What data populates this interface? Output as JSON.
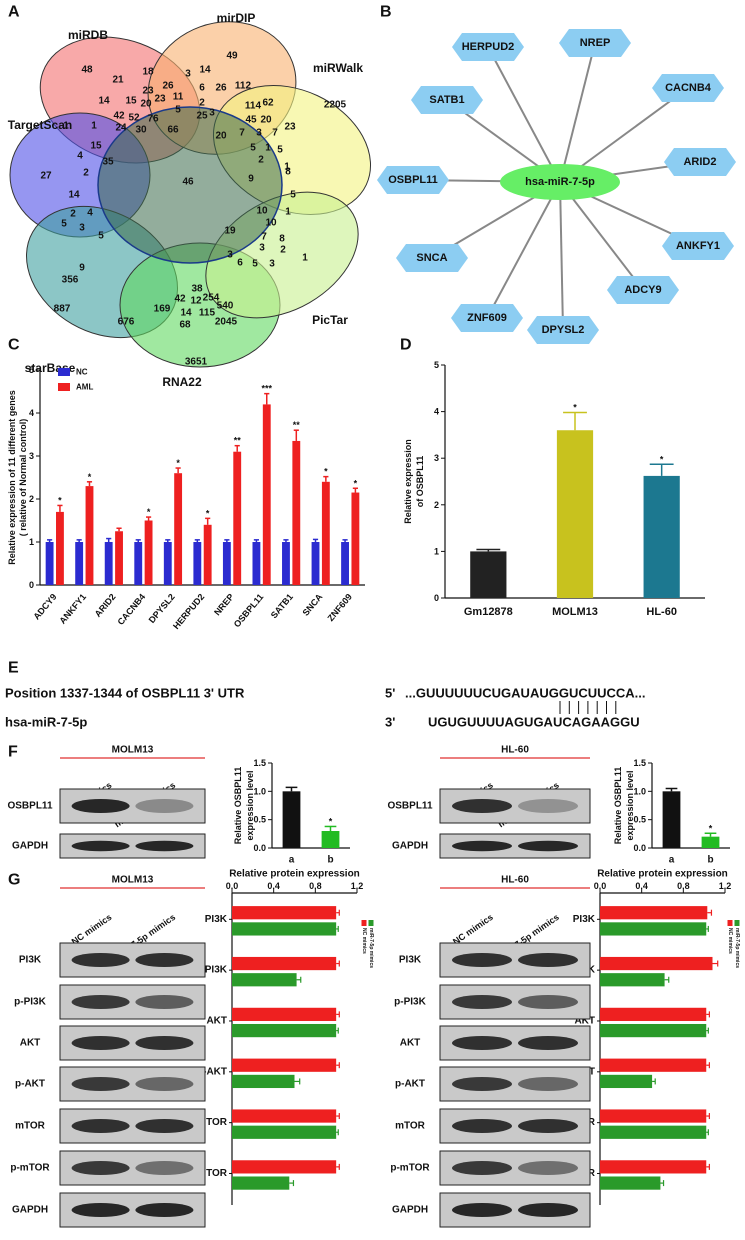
{
  "panel_labels": [
    "A",
    "B",
    "C",
    "D",
    "E",
    "F",
    "G"
  ],
  "venn": {
    "sets": [
      "miRDB",
      "mirDIP",
      "miRWalk",
      "TargetScan",
      "starBase",
      "RNA22",
      "PicTar"
    ],
    "counts": [
      48,
      21,
      18,
      3,
      14,
      49,
      23,
      26,
      6,
      26,
      112,
      14,
      15,
      20,
      23,
      11,
      2,
      62,
      42,
      52,
      76,
      5,
      3,
      114,
      1,
      24,
      30,
      66,
      25,
      45,
      20,
      1,
      23,
      2205,
      15,
      20,
      7,
      3,
      7,
      5,
      1,
      4,
      35,
      5,
      1,
      27,
      2,
      46,
      9,
      2,
      8,
      5,
      14,
      5,
      2,
      4,
      3,
      5,
      10,
      1,
      10,
      7,
      8,
      9,
      3,
      2,
      19,
      1,
      356,
      3,
      6,
      5,
      3,
      887,
      38,
      42,
      12,
      254,
      540,
      169,
      14,
      115,
      676,
      2045,
      68,
      3651
    ]
  },
  "network": {
    "center": "hsa-miR-7-5p",
    "targets": [
      "HERPUD2",
      "NREP",
      "CACNB4",
      "SATB1",
      "ARID2",
      "OSBPL11",
      "ANKFY1",
      "SNCA",
      "ADCY9",
      "ZNF609",
      "DPYSL2"
    ]
  },
  "chart_data": [
    {
      "type": "bar",
      "ylabel": [
        "Relative expression of 11 different genes",
        "( relative of Normal control)"
      ],
      "categories": [
        "ADCY9",
        "ANKFY1",
        "ARID2",
        "CACNB4",
        "DPYSL2",
        "HERPUD2",
        "NREP",
        "OSBPL11",
        "SATB1",
        "SNCA",
        "ZNF609"
      ],
      "series": [
        {
          "name": "NC",
          "color": "#2b2bd0",
          "values": [
            1,
            1,
            1,
            1,
            1,
            1,
            1,
            1,
            1,
            1,
            1
          ],
          "errors": [
            0.05,
            0.05,
            0.08,
            0.05,
            0.05,
            0.05,
            0.05,
            0.05,
            0.05,
            0.06,
            0.05
          ]
        },
        {
          "name": "AML",
          "color": "#ee2020",
          "values": [
            1.7,
            2.3,
            1.25,
            1.5,
            2.6,
            1.4,
            3.1,
            4.2,
            3.35,
            2.4,
            2.15
          ],
          "errors": [
            0.15,
            0.1,
            0.07,
            0.08,
            0.12,
            0.15,
            0.14,
            0.25,
            0.25,
            0.12,
            0.1
          ],
          "annotations": [
            "*",
            "*",
            null,
            "*",
            "*",
            "*",
            "**",
            "***",
            "**",
            "*",
            "*"
          ]
        }
      ],
      "ylim": [
        0,
        5
      ],
      "yticks": [
        0,
        1,
        2,
        3,
        4,
        5
      ],
      "legend": "upper left"
    },
    {
      "type": "bar",
      "ylabel": [
        "Relative expression",
        "of OSBPL11"
      ],
      "categories": [
        "Gm12878",
        "MOLM13",
        "HL-60"
      ],
      "values": [
        1.0,
        3.6,
        2.62
      ],
      "errors": [
        0.04,
        0.38,
        0.25
      ],
      "colors": [
        "#222222",
        "#c8c21e",
        "#1c7890"
      ],
      "annotations": [
        null,
        "*",
        "*"
      ],
      "ylim": [
        0,
        5
      ],
      "yticks": [
        0,
        1,
        2,
        3,
        4,
        5
      ]
    },
    {
      "type": "bar",
      "ylabel": [
        "Relative OSBPL11",
        "expression level"
      ],
      "categories": [
        "a",
        "b"
      ],
      "values": [
        1.0,
        0.3
      ],
      "errors": [
        0.07,
        0.08
      ],
      "colors": [
        "#111111",
        "#22bb22"
      ],
      "annotations": [
        null,
        "*"
      ],
      "ylim": [
        0,
        1.5
      ],
      "yticks": [
        {
          "value": 0,
          "label": "0.0"
        },
        {
          "value": 0.5,
          "label": "0.5"
        },
        {
          "value": 1,
          "label": "1.0"
        },
        {
          "value": 1.5,
          "label": "1.5"
        }
      ]
    },
    {
      "type": "bar",
      "ylabel": [
        "Relative OSBPL11",
        "expression level"
      ],
      "categories": [
        "a",
        "b"
      ],
      "values": [
        1.0,
        0.2
      ],
      "errors": [
        0.05,
        0.06
      ],
      "colors": [
        "#111111",
        "#22bb22"
      ],
      "annotations": [
        null,
        "*"
      ],
      "ylim": [
        0,
        1.5
      ],
      "yticks": [
        {
          "value": 0,
          "label": "0.0"
        },
        {
          "value": 0.5,
          "label": "0.5"
        },
        {
          "value": 1,
          "label": "1.0"
        },
        {
          "value": 1.5,
          "label": "1.5"
        }
      ]
    },
    {
      "type": "hbar",
      "title": "Relative protein expression",
      "categories": [
        "PI3K",
        "p-PI3K",
        "AKT",
        "p-AKT",
        "mTOR",
        "p-mTOR"
      ],
      "series": [
        {
          "name": "NC mimics",
          "color": "#ee2020",
          "values": [
            1.0,
            1.0,
            1.0,
            1.0,
            1.0,
            1.0
          ],
          "errors": [
            0.03,
            0.03,
            0.03,
            0.03,
            0.03,
            0.03
          ]
        },
        {
          "name": "miR-7-5p mimics",
          "color": "#2a9a2a",
          "values": [
            1.0,
            0.62,
            1.0,
            0.6,
            1.0,
            0.55
          ],
          "errors": [
            0.02,
            0.04,
            0.02,
            0.05,
            0.02,
            0.04
          ]
        }
      ],
      "xlim": [
        0,
        1.2
      ],
      "xticks": [
        {
          "value": 0,
          "label": "0.0"
        },
        {
          "value": 0.4,
          "label": "0.4"
        },
        {
          "value": 0.8,
          "label": "0.8"
        },
        {
          "value": 1.2,
          "label": "1.2"
        }
      ],
      "legend": "right"
    },
    {
      "type": "hbar",
      "title": "Relative protein expression",
      "categories": [
        "PI3K",
        "p-PI3K",
        "AKT",
        "p-AKT",
        "mTOR",
        "p-mTOR"
      ],
      "series": [
        {
          "name": "NC mimics",
          "color": "#ee2020",
          "values": [
            1.03,
            1.08,
            1.02,
            1.02,
            1.02,
            1.02
          ],
          "errors": [
            0.04,
            0.05,
            0.03,
            0.03,
            0.03,
            0.03
          ]
        },
        {
          "name": "miR-7-5p mimics",
          "color": "#2a9a2a",
          "values": [
            1.02,
            0.62,
            1.02,
            0.5,
            1.02,
            0.58
          ],
          "errors": [
            0.02,
            0.04,
            0.02,
            0.03,
            0.02,
            0.03
          ]
        }
      ],
      "xlim": [
        0,
        1.2
      ],
      "xticks": [
        {
          "value": 0,
          "label": "0.0"
        },
        {
          "value": 0.4,
          "label": "0.4"
        },
        {
          "value": 0.8,
          "label": "0.8"
        },
        {
          "value": 1.2,
          "label": "1.2"
        }
      ],
      "legend": "right"
    }
  ],
  "sequence": {
    "position": "Position 1337-1344  of OSBPL11  3' UTR",
    "end5": "5'",
    "target_seq": "...GUUUUUUCUGAUAUGGUCUUCCA...",
    "mirna": "hsa-miR-7-5p",
    "end3": "3'",
    "mirna_seq": "UGUGUUUUAGUGAUCAGAAGGU"
  },
  "blots": [
    {
      "cell_line": "MOLM13",
      "lanes": [
        "NC mimics",
        "miR-7-5p mimics"
      ],
      "rows": [
        "OSBPL11",
        "GAPDH"
      ]
    },
    {
      "cell_line": "HL-60",
      "lanes": [
        "NC mimics",
        "miR-7-5p mimics"
      ],
      "rows": [
        "OSBPL11",
        "GAPDH"
      ]
    },
    {
      "cell_line": "MOLM13",
      "lanes": [
        "NC mimics",
        "miR-7-5p mimics"
      ],
      "rows": [
        "PI3K",
        "p-PI3K",
        "AKT",
        "p-AKT",
        "mTOR",
        "p-mTOR",
        "GAPDH"
      ]
    },
    {
      "cell_line": "HL-60",
      "lanes": [
        "NC mimics",
        "miR-7-5p mimics"
      ],
      "rows": [
        "PI3K",
        "p-PI3K",
        "AKT",
        "p-AKT",
        "mTOR",
        "p-mTOR",
        "GAPDH"
      ]
    }
  ]
}
